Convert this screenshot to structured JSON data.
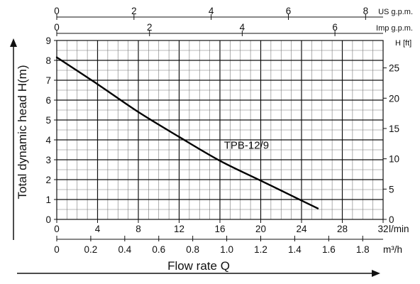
{
  "chart_data": {
    "type": "line",
    "series": [
      {
        "name": "TPB-12/9",
        "x": [
          0,
          4,
          8,
          12,
          16,
          20,
          24,
          25.6
        ],
        "y": [
          8.15,
          6.8,
          5.4,
          4.15,
          2.95,
          1.95,
          0.95,
          0.55
        ]
      }
    ],
    "xlabel": "Flow rate Q",
    "ylabel": "Total dynamic head H(m)",
    "xlim": [
      0,
      32
    ],
    "ylim": [
      0,
      9
    ],
    "grid": true,
    "axes": {
      "lmin": {
        "unit": "l/min",
        "ticks": [
          "0",
          "4",
          "8",
          "12",
          "16",
          "20",
          "24",
          "28",
          "32"
        ]
      },
      "m3h": {
        "unit": "m³/h",
        "ticks": [
          "0",
          "0.2",
          "0.4",
          "0.6",
          "0.8",
          "1.0",
          "1.2",
          "1.4",
          "1.6",
          "1.8"
        ]
      },
      "usgpm": {
        "unit": "US g.p.m.",
        "ticks": [
          "0",
          "2",
          "4",
          "6",
          "8"
        ]
      },
      "impgpm": {
        "unit": "Imp g.p.m.",
        "ticks": [
          "0",
          "2",
          "4",
          "6"
        ]
      },
      "hm": {
        "ticks": [
          "0",
          "1",
          "2",
          "3",
          "4",
          "5",
          "6",
          "7",
          "8",
          "9"
        ]
      },
      "hft": {
        "unit": "H [ft]",
        "ticks": [
          "0",
          "5",
          "10",
          "15",
          "20",
          "25"
        ]
      }
    }
  }
}
